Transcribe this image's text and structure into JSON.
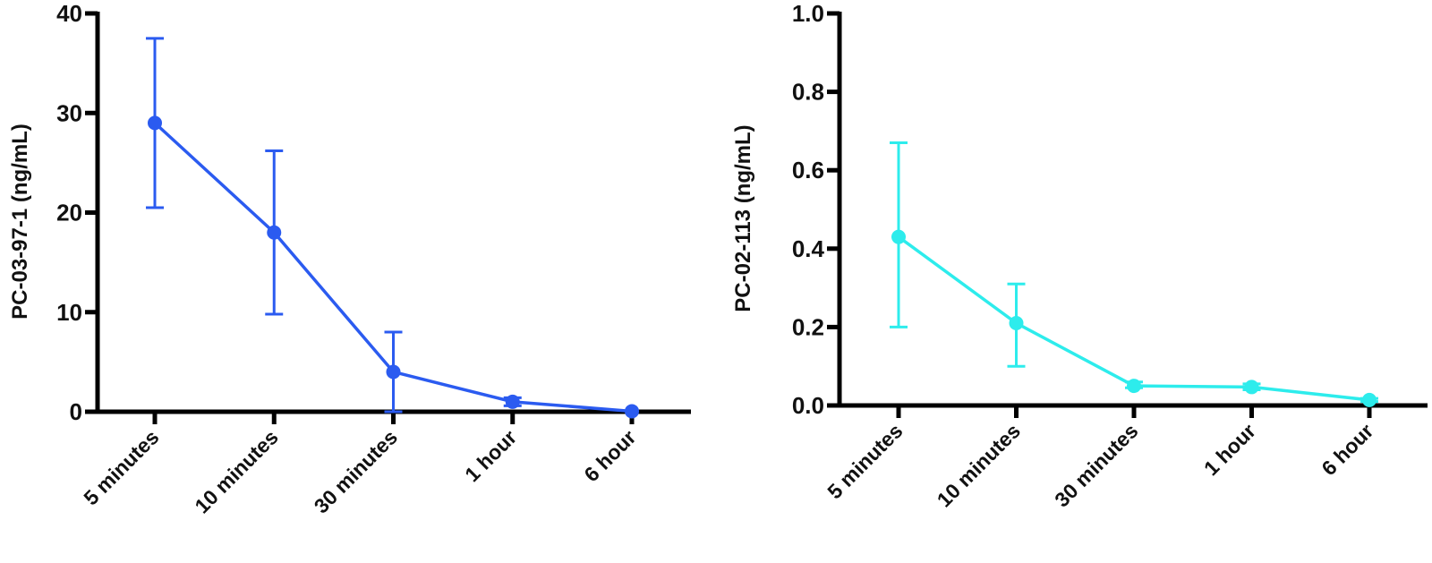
{
  "chart_data": [
    {
      "type": "line",
      "title": "",
      "xlabel": "",
      "ylabel": "PC-03-97-1 (ng/mL)",
      "categories": [
        "5 minutes",
        "10 minutes",
        "30 minutes",
        "1 hour",
        "6 hour"
      ],
      "series": [
        {
          "name": "PC-03-97-1",
          "color": "#2B5BF0",
          "values": [
            29.0,
            18.0,
            4.0,
            1.0,
            0.05
          ],
          "error_upper": [
            37.5,
            26.2,
            8.0,
            1.4,
            0.1
          ],
          "error_lower": [
            20.5,
            9.8,
            0.0,
            0.6,
            0.0
          ]
        }
      ],
      "ylim": [
        0,
        40
      ],
      "yticks": [
        "0",
        "10",
        "20",
        "30",
        "40"
      ],
      "grid": false,
      "legend": "none"
    },
    {
      "type": "line",
      "title": "",
      "xlabel": "",
      "ylabel": "PC-02-113 (ng/mL)",
      "categories": [
        "5 minutes",
        "10 minutes",
        "30 minutes",
        "1 hour",
        "6 hour"
      ],
      "series": [
        {
          "name": "PC-02-113",
          "color": "#2DECEC",
          "values": [
            0.43,
            0.21,
            0.05,
            0.047,
            0.014
          ],
          "error_upper": [
            0.67,
            0.31,
            0.06,
            0.055,
            0.018
          ],
          "error_lower": [
            0.2,
            0.1,
            0.045,
            0.04,
            0.01
          ]
        }
      ],
      "ylim": [
        0,
        1.0
      ],
      "yticks": [
        "0.0",
        "0.2",
        "0.4",
        "0.6",
        "0.8",
        "1.0"
      ],
      "grid": false,
      "legend": "none"
    }
  ]
}
